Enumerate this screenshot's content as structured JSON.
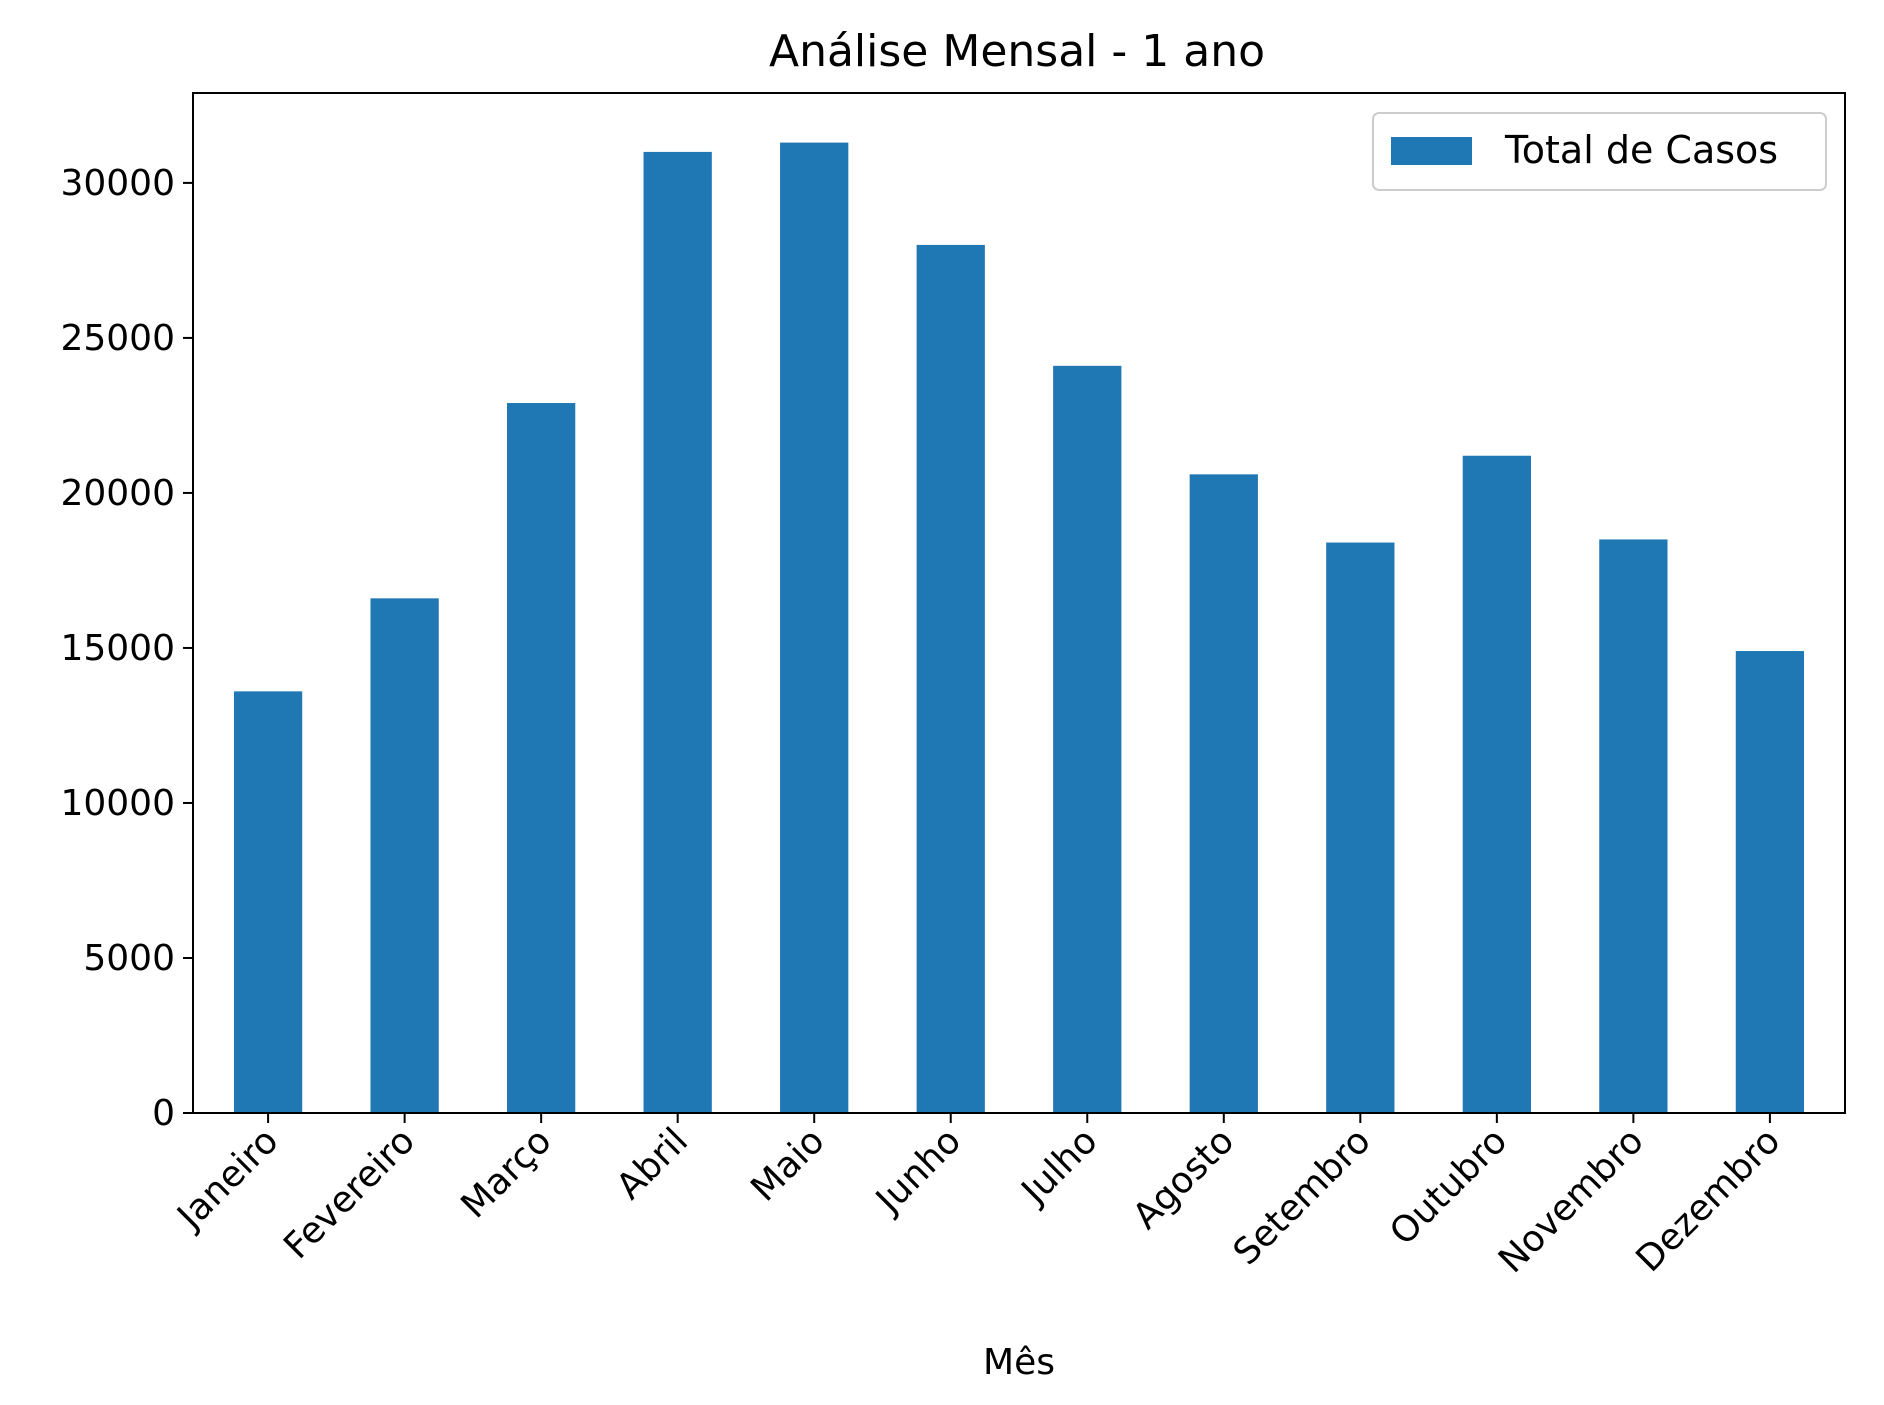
{
  "chart_data": {
    "type": "bar",
    "title": "Análise Mensal - 1 ano",
    "xlabel": "Mês",
    "ylabel": "",
    "categories": [
      "Janeiro",
      "Fevereiro",
      "Março",
      "Abril",
      "Maio",
      "Junho",
      "Julho",
      "Agosto",
      "Setembro",
      "Outubro",
      "Novembro",
      "Dezembro"
    ],
    "series": [
      {
        "name": "Total de Casos",
        "color": "#1f77b4",
        "values": [
          13600,
          16600,
          22900,
          31000,
          31300,
          28000,
          24100,
          20600,
          18400,
          21200,
          18500,
          14900
        ]
      }
    ],
    "ylim": [
      0,
      32900
    ],
    "yticks": [
      0,
      5000,
      10000,
      15000,
      20000,
      25000,
      30000
    ],
    "grid": false,
    "legend_position": "top-right",
    "xtick_rotation_deg": 45
  }
}
